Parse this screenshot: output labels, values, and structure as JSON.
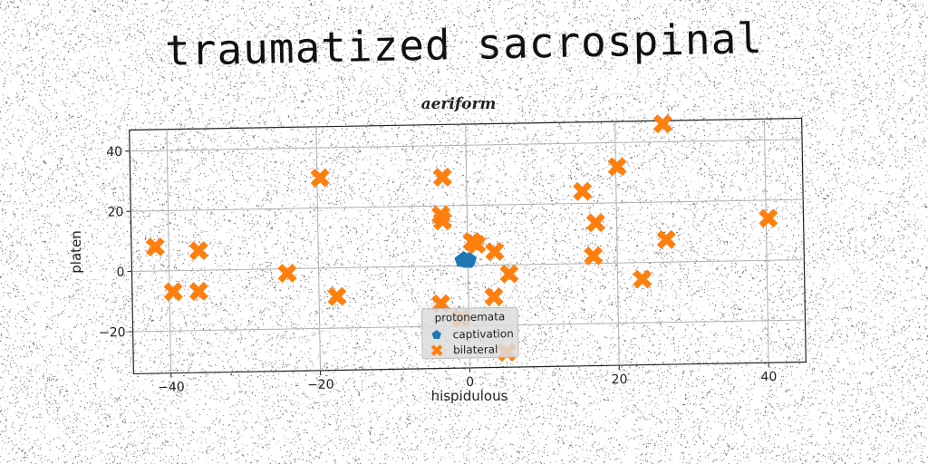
{
  "page_title": "traumatized sacrospinal",
  "chart_data": {
    "type": "scatter",
    "title": "aeriform",
    "xlabel": "hispidulous",
    "ylabel": "platen",
    "xlim": [
      -45,
      45
    ],
    "ylim": [
      -34,
      47
    ],
    "xticks": [
      -40,
      -20,
      0,
      20,
      40
    ],
    "yticks": [
      -20,
      0,
      20,
      40
    ],
    "xtick_labels": [
      "−40",
      "−20",
      "0",
      "20",
      "40"
    ],
    "ytick_labels": [
      "−20",
      "0",
      "20",
      "40"
    ],
    "grid": true,
    "legend": {
      "title": "protonemata",
      "position": "bottom-center"
    },
    "series": [
      {
        "name": "captivation",
        "marker": "pentagon",
        "color": "#1f77b4",
        "points": [
          [
            -0.8,
            1.8
          ],
          [
            -0.3,
            1.6
          ],
          [
            0.2,
            1.9
          ],
          [
            -0.5,
            2.2
          ],
          [
            0.0,
            1.4
          ]
        ]
      },
      {
        "name": "bilateral",
        "marker": "x",
        "color": "#ff7f0e",
        "points": [
          [
            26.4,
            46
          ],
          [
            -3.2,
            29.5
          ],
          [
            -19.6,
            30
          ],
          [
            20.2,
            32
          ],
          [
            15.5,
            24
          ],
          [
            -3.5,
            17
          ],
          [
            -3.3,
            15
          ],
          [
            17.2,
            13.5
          ],
          [
            40.3,
            14
          ],
          [
            -41.8,
            8
          ],
          [
            -36,
            6.5
          ],
          [
            0.6,
            8
          ],
          [
            1.2,
            7
          ],
          [
            26.6,
            7.5
          ],
          [
            3.6,
            4.5
          ],
          [
            16.8,
            2.5
          ],
          [
            -24.2,
            -1.5
          ],
          [
            5.5,
            -3
          ],
          [
            23.3,
            -5.5
          ],
          [
            -39.5,
            -7
          ],
          [
            -36.1,
            -7
          ],
          [
            -17.6,
            -9.5
          ],
          [
            3.4,
            -10.5
          ],
          [
            -3.7,
            -12.5
          ],
          [
            -1,
            -17.5
          ],
          [
            5,
            -29
          ]
        ]
      }
    ]
  }
}
